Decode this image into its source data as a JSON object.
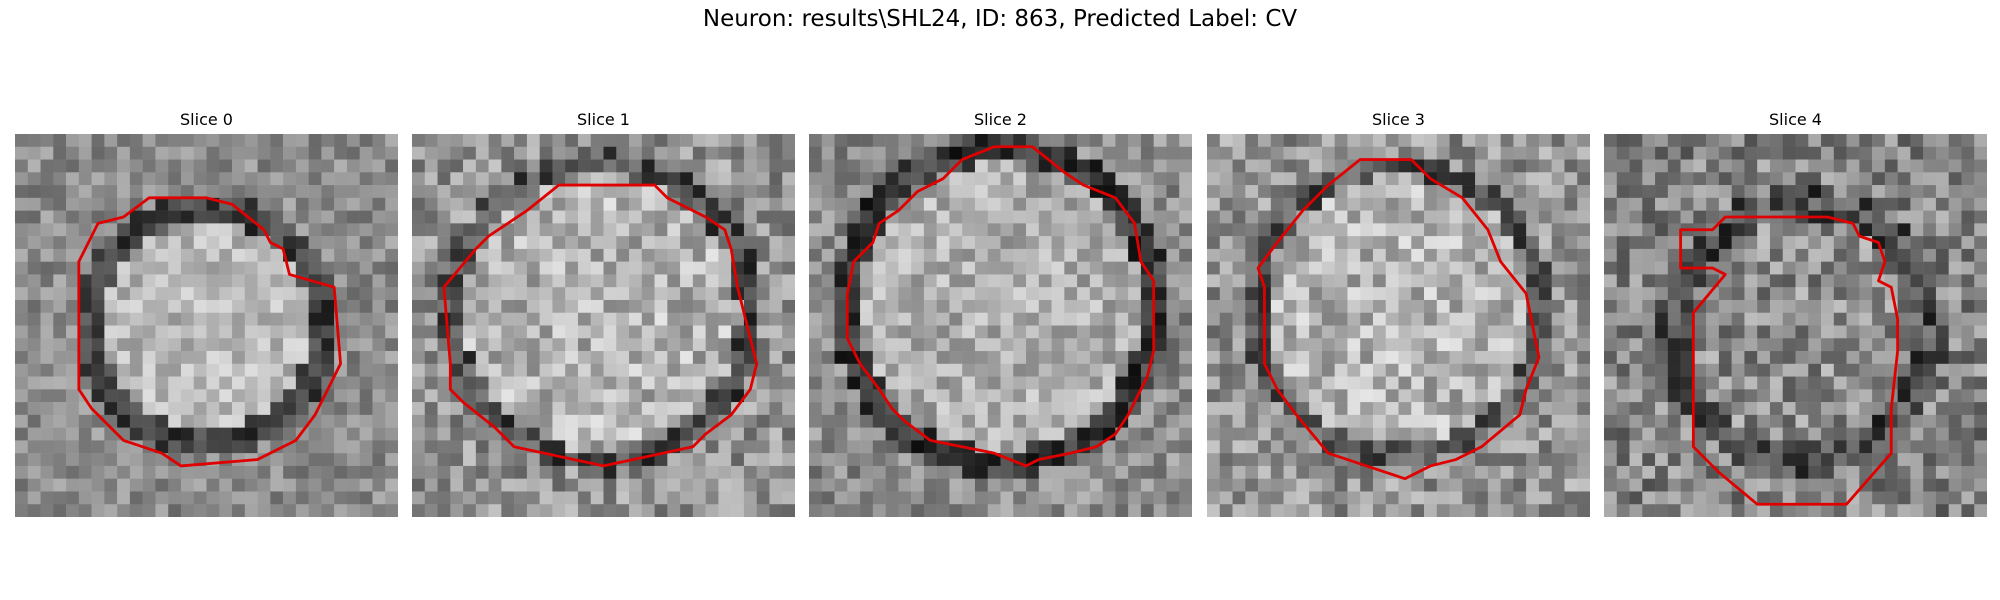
{
  "figure": {
    "title": "Neuron: results\\SHL24, ID: 863, Predicted Label: CV",
    "outline_color": "#e00000",
    "colormap": "gray"
  },
  "panels": [
    {
      "title": "Slice 0"
    },
    {
      "title": "Slice 1"
    },
    {
      "title": "Slice 2"
    },
    {
      "title": "Slice 3"
    },
    {
      "title": "Slice 4"
    }
  ]
}
